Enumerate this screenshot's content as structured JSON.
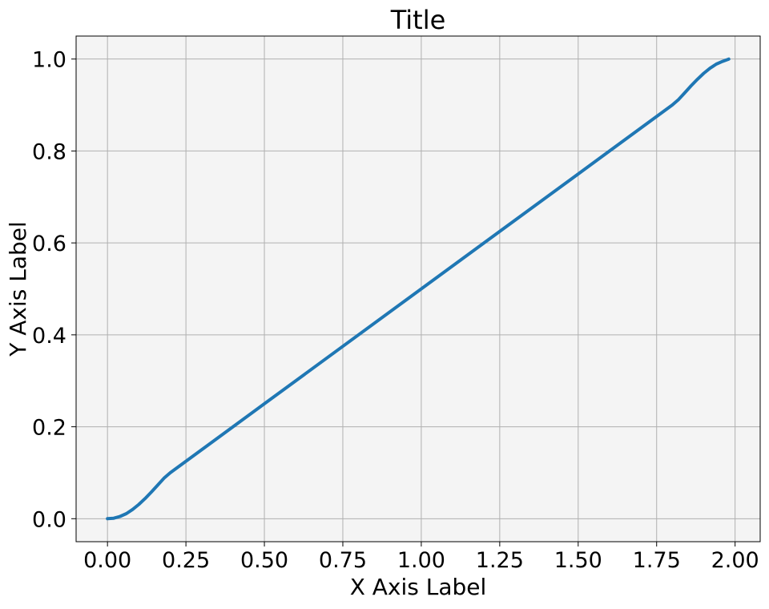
{
  "chart_data": {
    "type": "line",
    "title": "Title",
    "xlabel": "X Axis Label",
    "ylabel": "Y Axis Label",
    "xlim": [
      -0.1,
      2.08
    ],
    "ylim": [
      -0.05,
      1.05
    ],
    "x_ticks": [
      0,
      0.25,
      0.5,
      0.75,
      1.0,
      1.25,
      1.5,
      1.75,
      2.0
    ],
    "x_tick_labels": [
      "0.00",
      "0.25",
      "0.50",
      "0.75",
      "1.00",
      "1.25",
      "1.50",
      "1.75",
      "2.00"
    ],
    "y_ticks": [
      0,
      0.2,
      0.4,
      0.6,
      0.8,
      1.0
    ],
    "y_tick_labels": [
      "0.0",
      "0.2",
      "0.4",
      "0.6",
      "0.8",
      "1.0"
    ],
    "grid": true,
    "background": "#f4f4f4",
    "series": [
      {
        "color": "#1f77b4",
        "x": [
          0.0,
          0.02,
          0.04,
          0.06,
          0.08,
          0.1,
          0.12,
          0.14,
          0.16,
          0.18,
          0.2,
          0.5,
          1.0,
          1.5,
          1.8,
          1.82,
          1.84,
          1.86,
          1.88,
          1.9,
          1.92,
          1.94,
          1.96,
          1.98
        ],
        "y": [
          0.0,
          0.001,
          0.005,
          0.011,
          0.02,
          0.031,
          0.044,
          0.058,
          0.073,
          0.088,
          0.1,
          0.25,
          0.5,
          0.75,
          0.9,
          0.912,
          0.927,
          0.942,
          0.956,
          0.969,
          0.98,
          0.989,
          0.995,
          1.0
        ]
      }
    ]
  }
}
